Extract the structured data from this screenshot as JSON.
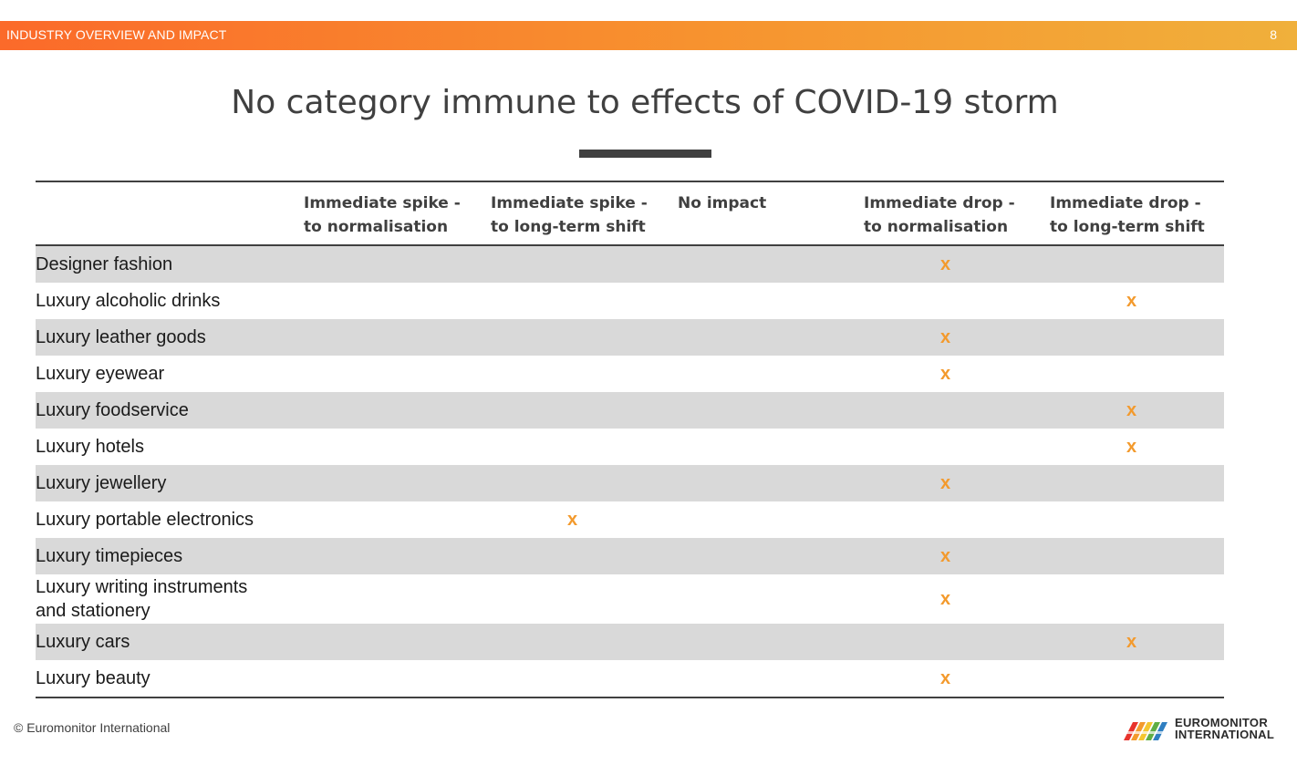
{
  "header": {
    "section_label": "INDUSTRY  OVERVIEW AND IMPACT",
    "page_number": "8",
    "accent_colors": [
      "#fb6a2a",
      "#f0b03b"
    ]
  },
  "title": "No category immune to effects of COVID-19 storm",
  "table": {
    "columns": [
      {
        "line1": "Immediate spike  -",
        "line2": "to normalisation"
      },
      {
        "line1": "Immediate spike  -",
        "line2": "to long-term shift"
      },
      {
        "line1": "No impact",
        "line2": ""
      },
      {
        "line1": "Immediate drop  -",
        "line2": "to normalisation"
      },
      {
        "line1": "Immediate drop  -",
        "line2": "to long-term shift"
      }
    ],
    "marker": "x",
    "marker_color": "#f39a2d",
    "rows": [
      {
        "category": "Designer fashion",
        "marks": [
          "",
          "",
          "",
          "x",
          ""
        ]
      },
      {
        "category": "Luxury alcoholic drinks",
        "marks": [
          "",
          "",
          "",
          "",
          "x"
        ]
      },
      {
        "category": "Luxury leather goods",
        "marks": [
          "",
          "",
          "",
          "x",
          ""
        ]
      },
      {
        "category": "Luxury eyewear",
        "marks": [
          "",
          "",
          "",
          "x",
          ""
        ]
      },
      {
        "category": "Luxury foodservice",
        "marks": [
          "",
          "",
          "",
          "",
          "x"
        ]
      },
      {
        "category": "Luxury hotels",
        "marks": [
          "",
          "",
          "",
          "",
          "x"
        ]
      },
      {
        "category": "Luxury jewellery",
        "marks": [
          "",
          "",
          "",
          "x",
          ""
        ]
      },
      {
        "category": "Luxury portable electronics",
        "marks": [
          "",
          "x",
          "",
          "",
          ""
        ]
      },
      {
        "category": "Luxury timepieces",
        "marks": [
          "",
          "",
          "",
          "x",
          ""
        ]
      },
      {
        "category_line1": "Luxury writing instruments",
        "category_line2": "and stationery",
        "marks": [
          "",
          "",
          "",
          "x",
          ""
        ]
      },
      {
        "category": "Luxury cars",
        "marks": [
          "",
          "",
          "",
          "",
          "x"
        ]
      },
      {
        "category": "Luxury beauty",
        "marks": [
          "",
          "",
          "",
          "x",
          ""
        ]
      }
    ]
  },
  "footer": {
    "copyright": "© Euromonitor International",
    "logo_line1": "EUROMONITOR",
    "logo_line2": "INTERNATIONAL",
    "logo_icon": "rainbow-bridge-logo-icon"
  }
}
